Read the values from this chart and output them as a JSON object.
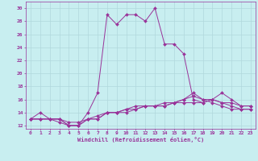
{
  "xlabel": "Windchill (Refroidissement éolien,°C)",
  "background_color": "#c8eef0",
  "grid_color": "#b0d8dc",
  "line_color": "#993399",
  "xlim": [
    -0.5,
    23.5
  ],
  "ylim": [
    11.5,
    31.0
  ],
  "yticks": [
    12,
    14,
    16,
    18,
    20,
    22,
    24,
    26,
    28,
    30
  ],
  "xticks": [
    0,
    1,
    2,
    3,
    4,
    5,
    6,
    7,
    8,
    9,
    10,
    11,
    12,
    13,
    14,
    15,
    16,
    17,
    18,
    19,
    20,
    21,
    22,
    23
  ],
  "series": [
    {
      "x": [
        0,
        1,
        2,
        3,
        4,
        5,
        6,
        7,
        8,
        9,
        10,
        11,
        12,
        13,
        14,
        15,
        16,
        17,
        18,
        19,
        20,
        21,
        22,
        23
      ],
      "y": [
        13,
        14,
        13,
        13,
        12,
        12,
        14,
        17,
        29,
        27.5,
        29,
        29,
        28,
        30,
        24.5,
        24.5,
        23,
        16,
        15.5,
        16,
        17,
        16,
        15,
        15
      ]
    },
    {
      "x": [
        0,
        1,
        2,
        3,
        4,
        5,
        6,
        7,
        8,
        9,
        10,
        11,
        12,
        13,
        14,
        15,
        16,
        17,
        18,
        19,
        20,
        21,
        22,
        23
      ],
      "y": [
        13,
        13,
        13,
        13,
        12,
        12,
        13,
        13.5,
        14,
        14,
        14.5,
        15,
        15,
        15,
        15.5,
        15.5,
        16,
        17,
        16,
        15.5,
        15,
        14.5,
        14.5,
        14.5
      ]
    },
    {
      "x": [
        0,
        1,
        2,
        3,
        4,
        5,
        6,
        7,
        8,
        9,
        10,
        11,
        12,
        13,
        14,
        15,
        16,
        17,
        18,
        19,
        20,
        21,
        22,
        23
      ],
      "y": [
        13,
        13,
        13,
        12.5,
        12,
        12,
        13,
        13,
        14,
        14,
        14.5,
        14.5,
        15,
        15,
        15,
        15.5,
        16,
        16.5,
        16,
        16,
        15.5,
        15,
        14.5,
        14.5
      ]
    },
    {
      "x": [
        0,
        1,
        2,
        3,
        4,
        5,
        6,
        7,
        8,
        9,
        10,
        11,
        12,
        13,
        14,
        15,
        16,
        17,
        18,
        19,
        20,
        21,
        22,
        23
      ],
      "y": [
        13,
        13,
        13,
        13,
        12.5,
        12.5,
        13,
        13,
        14,
        14,
        14,
        14.5,
        15,
        15,
        15,
        15.5,
        15.5,
        15.5,
        15.5,
        16,
        15.5,
        15.5,
        15,
        15
      ]
    }
  ]
}
